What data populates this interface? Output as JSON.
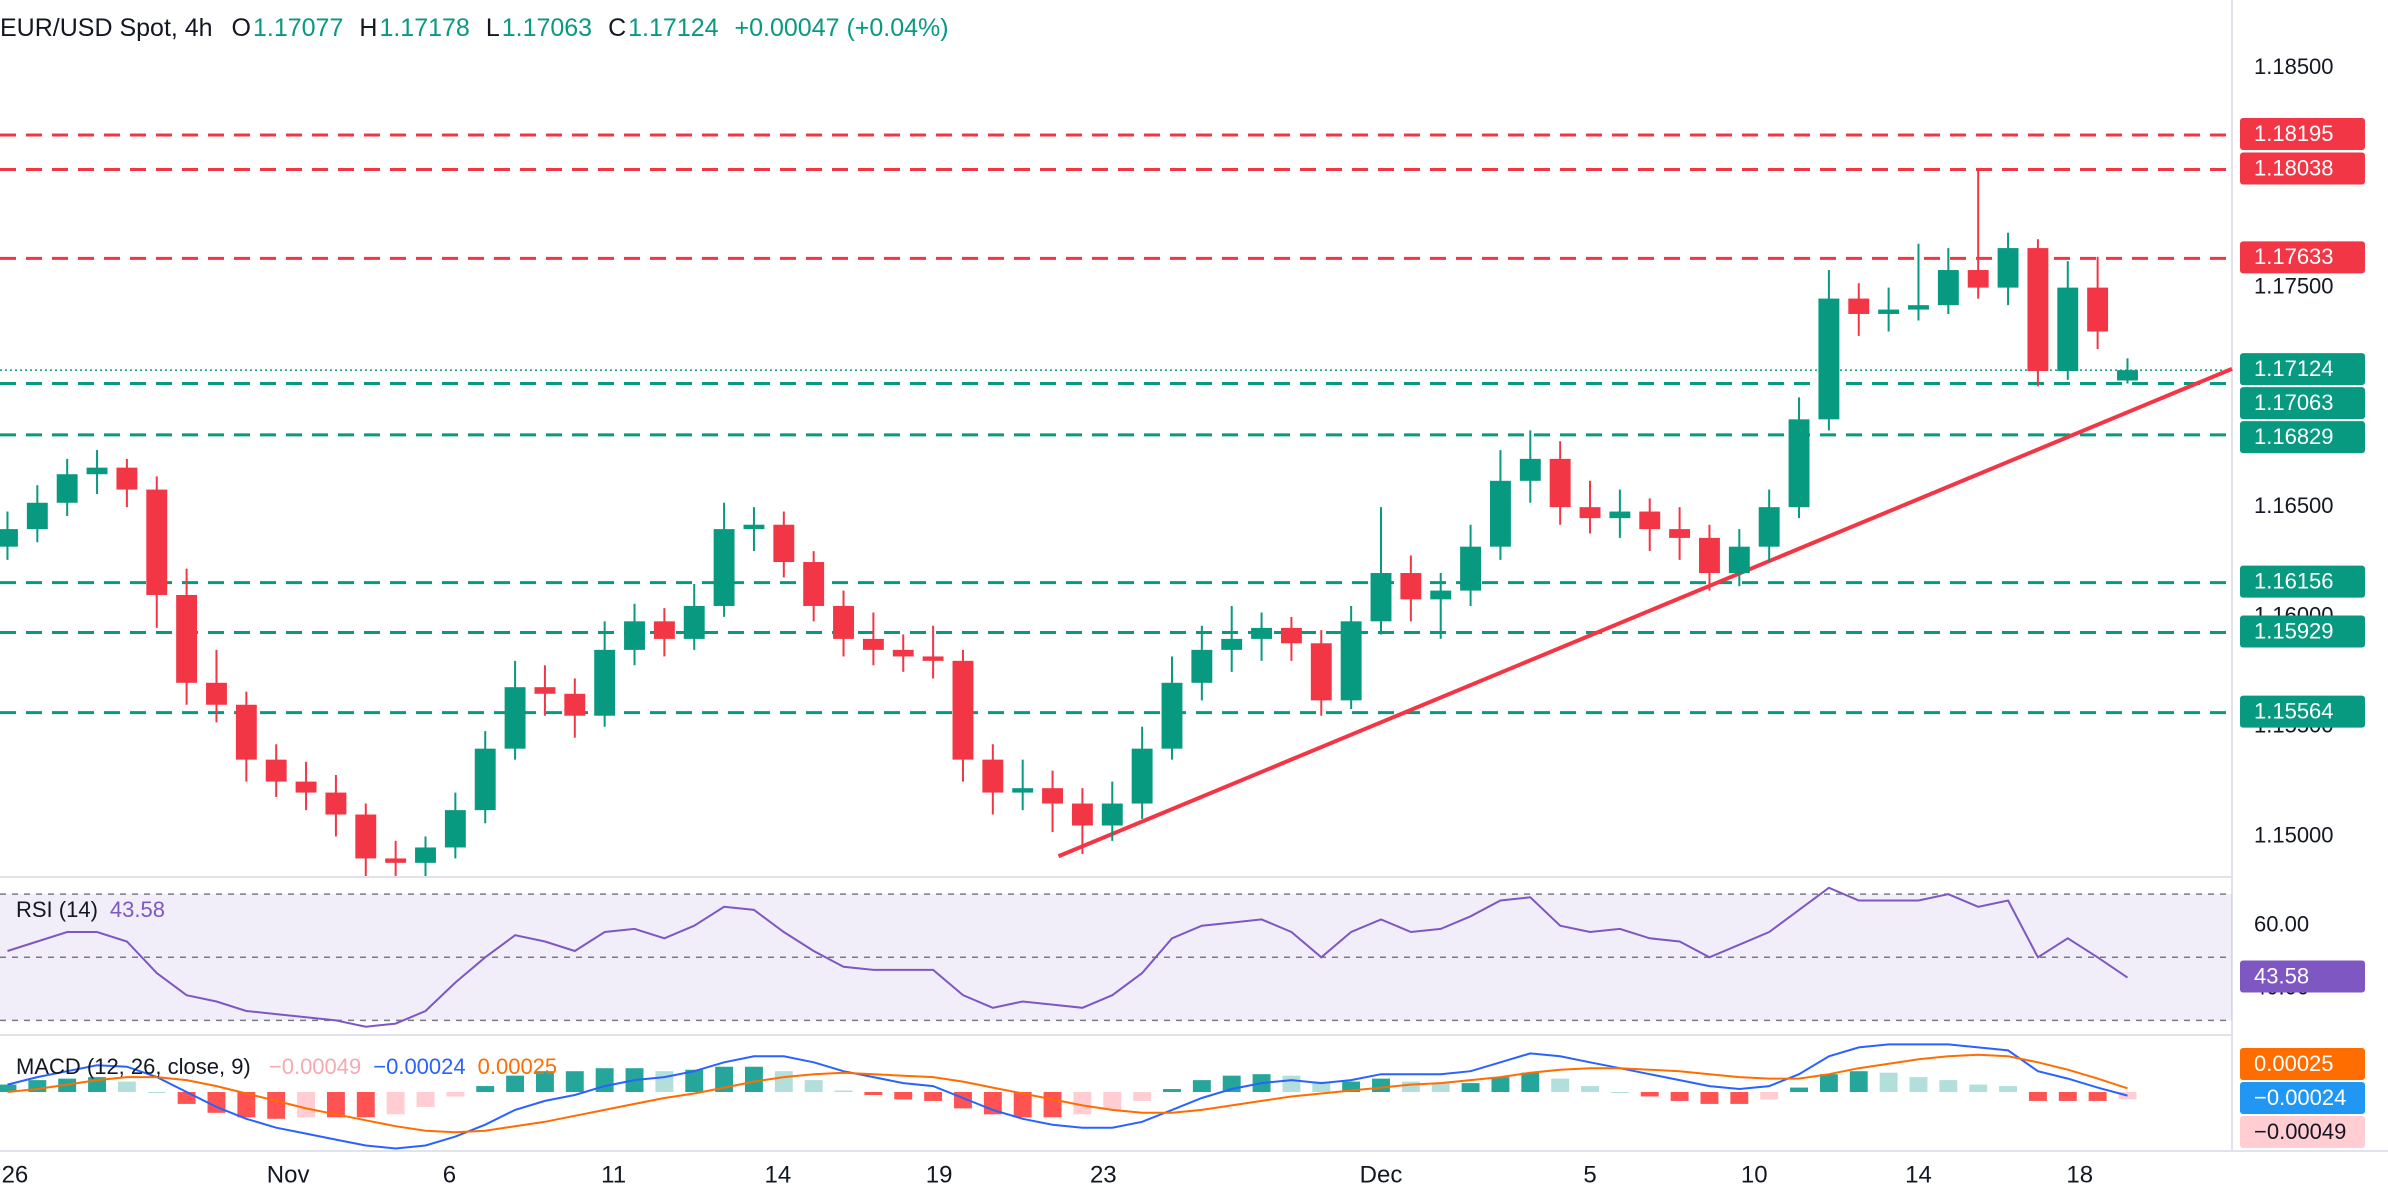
{
  "chart_data": [
    {
      "type": "candlestick",
      "title": "EUR/USD Spot, 4h",
      "ohlc_legend": [
        {
          "label": "O",
          "value": 1.17077
        },
        {
          "label": "H",
          "value": 1.17178
        },
        {
          "label": "L",
          "value": 1.17063
        },
        {
          "label": "C",
          "value": 1.17124
        }
      ],
      "change": "+0.00047 (+0.04%)",
      "up_color": "#089981",
      "down_color": "#f23645",
      "ohlc": [
        [
          1.1632,
          1.1648,
          1.1626,
          1.164
        ],
        [
          1.164,
          1.166,
          1.1634,
          1.1652
        ],
        [
          1.1652,
          1.1672,
          1.1646,
          1.1665
        ],
        [
          1.1665,
          1.1676,
          1.1656,
          1.1668
        ],
        [
          1.1668,
          1.1672,
          1.165,
          1.1658
        ],
        [
          1.1658,
          1.1664,
          1.1595,
          1.161
        ],
        [
          1.161,
          1.1622,
          1.156,
          1.157
        ],
        [
          1.157,
          1.1585,
          1.1552,
          1.156
        ],
        [
          1.156,
          1.1566,
          1.1525,
          1.1535
        ],
        [
          1.1535,
          1.1542,
          1.1518,
          1.1525
        ],
        [
          1.1525,
          1.1534,
          1.1512,
          1.152
        ],
        [
          1.152,
          1.1528,
          1.15,
          1.151
        ],
        [
          1.151,
          1.1515,
          1.1482,
          1.149
        ],
        [
          1.149,
          1.1498,
          1.1482,
          1.1488
        ],
        [
          1.1488,
          1.15,
          1.1482,
          1.1495
        ],
        [
          1.1495,
          1.152,
          1.149,
          1.1512
        ],
        [
          1.1512,
          1.1548,
          1.1506,
          1.154
        ],
        [
          1.154,
          1.158,
          1.1535,
          1.1568
        ],
        [
          1.1568,
          1.1578,
          1.1555,
          1.1565
        ],
        [
          1.1565,
          1.1572,
          1.1545,
          1.1555
        ],
        [
          1.1555,
          1.1598,
          1.155,
          1.1585
        ],
        [
          1.1585,
          1.1606,
          1.1578,
          1.1598
        ],
        [
          1.1598,
          1.1604,
          1.1582,
          1.159
        ],
        [
          1.159,
          1.1615,
          1.1585,
          1.1605
        ],
        [
          1.1605,
          1.1652,
          1.16,
          1.164
        ],
        [
          1.164,
          1.165,
          1.163,
          1.1642
        ],
        [
          1.1642,
          1.1648,
          1.1618,
          1.1625
        ],
        [
          1.1625,
          1.163,
          1.1598,
          1.1605
        ],
        [
          1.1605,
          1.1612,
          1.1582,
          1.159
        ],
        [
          1.159,
          1.1602,
          1.1578,
          1.1585
        ],
        [
          1.1585,
          1.1592,
          1.1575,
          1.1582
        ],
        [
          1.1582,
          1.1596,
          1.1572,
          1.158
        ],
        [
          1.158,
          1.1585,
          1.1525,
          1.1535
        ],
        [
          1.1535,
          1.1542,
          1.151,
          1.152
        ],
        [
          1.152,
          1.1535,
          1.1512,
          1.1522
        ],
        [
          1.1522,
          1.153,
          1.1502,
          1.1515
        ],
        [
          1.1515,
          1.1522,
          1.1492,
          1.1505
        ],
        [
          1.1505,
          1.1525,
          1.1498,
          1.1515
        ],
        [
          1.1515,
          1.155,
          1.1508,
          1.154
        ],
        [
          1.154,
          1.1582,
          1.1535,
          1.157
        ],
        [
          1.157,
          1.1596,
          1.1562,
          1.1585
        ],
        [
          1.1585,
          1.1605,
          1.1575,
          1.159
        ],
        [
          1.159,
          1.1602,
          1.158,
          1.1595
        ],
        [
          1.1595,
          1.16,
          1.158,
          1.1588
        ],
        [
          1.1588,
          1.1594,
          1.1555,
          1.1562
        ],
        [
          1.1562,
          1.1605,
          1.1558,
          1.1598
        ],
        [
          1.1598,
          1.165,
          1.1592,
          1.162
        ],
        [
          1.162,
          1.1628,
          1.1598,
          1.1608
        ],
        [
          1.1608,
          1.162,
          1.159,
          1.1612
        ],
        [
          1.1612,
          1.1642,
          1.1605,
          1.1632
        ],
        [
          1.1632,
          1.1676,
          1.1626,
          1.1662
        ],
        [
          1.1662,
          1.1685,
          1.1652,
          1.1672
        ],
        [
          1.1672,
          1.168,
          1.1642,
          1.165
        ],
        [
          1.165,
          1.1662,
          1.1638,
          1.1645
        ],
        [
          1.1645,
          1.1658,
          1.1636,
          1.1648
        ],
        [
          1.1648,
          1.1654,
          1.163,
          1.164
        ],
        [
          1.164,
          1.165,
          1.1626,
          1.1636
        ],
        [
          1.1636,
          1.1642,
          1.1612,
          1.162
        ],
        [
          1.162,
          1.164,
          1.1614,
          1.1632
        ],
        [
          1.1632,
          1.1658,
          1.1625,
          1.165
        ],
        [
          1.165,
          1.17,
          1.1645,
          1.169
        ],
        [
          1.169,
          1.1758,
          1.1685,
          1.1745
        ],
        [
          1.1745,
          1.1752,
          1.1728,
          1.1738
        ],
        [
          1.1738,
          1.175,
          1.173,
          1.174
        ],
        [
          1.174,
          1.177,
          1.1735,
          1.1742
        ],
        [
          1.1742,
          1.1768,
          1.1738,
          1.1758
        ],
        [
          1.1758,
          1.1804,
          1.1745,
          1.175
        ],
        [
          1.175,
          1.1775,
          1.1742,
          1.1768
        ],
        [
          1.1768,
          1.1772,
          1.1705,
          1.1712
        ],
        [
          1.1712,
          1.1762,
          1.1708,
          1.175
        ],
        [
          1.175,
          1.1764,
          1.1722,
          1.173
        ],
        [
          1.17077,
          1.17178,
          1.17063,
          1.17124
        ]
      ],
      "xlim": [
        -0.25,
        74.5
      ],
      "xticks": [
        {
          "value": 0.25,
          "label": "26"
        },
        {
          "value": 9.4,
          "label": "Nov"
        },
        {
          "value": 14.8,
          "label": "6"
        },
        {
          "value": 20.3,
          "label": "11"
        },
        {
          "value": 25.8,
          "label": "14"
        },
        {
          "value": 31.2,
          "label": "19"
        },
        {
          "value": 36.7,
          "label": "23"
        },
        {
          "value": 46,
          "label": "Dec"
        },
        {
          "value": 53,
          "label": "5"
        },
        {
          "value": 58.5,
          "label": "10"
        },
        {
          "value": 64,
          "label": "14"
        },
        {
          "value": 69.4,
          "label": "18"
        }
      ],
      "ylim": [
        1.1482,
        1.1881
      ],
      "yticks": [
        {
          "value": 1.185,
          "label": "1.18500"
        },
        {
          "value": 1.175,
          "label": "1.17500"
        },
        {
          "value": 1.165,
          "label": "1.16500"
        },
        {
          "value": 1.16,
          "label": "1.16000"
        },
        {
          "value": 1.155,
          "label": "1.15500"
        },
        {
          "value": 1.15,
          "label": "1.15000"
        }
      ],
      "levels": [
        {
          "value": 1.18195,
          "color": "#f23645"
        },
        {
          "value": 1.18038,
          "color": "#f23645"
        },
        {
          "value": 1.17633,
          "color": "#f23645"
        },
        {
          "value": 1.17063,
          "color": "#089981"
        },
        {
          "value": 1.16829,
          "color": "#089981"
        },
        {
          "value": 1.16156,
          "color": "#089981"
        },
        {
          "value": 1.15929,
          "color": "#089981"
        },
        {
          "value": 1.15564,
          "color": "#089981"
        }
      ],
      "last_price": {
        "value": 1.17124,
        "color": "#089981"
      },
      "trendline": {
        "x": [
          35.2,
          74.5
        ],
        "y": [
          1.1491,
          1.1713
        ],
        "color": "#f23645"
      }
    },
    {
      "type": "rsi",
      "title": "RSI (14)",
      "color": "#7e57c2",
      "values": [
        52,
        55,
        58,
        58,
        55,
        45,
        38,
        36,
        33,
        32,
        31,
        30,
        28,
        29,
        33,
        42,
        50,
        57,
        55,
        52,
        58,
        59,
        56,
        60,
        66,
        65,
        58,
        52,
        47,
        46,
        46,
        46,
        38,
        34,
        36,
        35,
        34,
        38,
        45,
        56,
        60,
        61,
        62,
        58,
        50,
        58,
        62,
        58,
        59,
        63,
        68,
        69,
        60,
        58,
        59,
        56,
        55,
        50,
        54,
        58,
        65,
        72,
        68,
        68,
        68,
        70,
        66,
        68,
        50,
        56,
        50,
        43.58
      ],
      "ylim": [
        25.7,
        74.8
      ],
      "yticks": [
        {
          "value": 60,
          "label": "60.00"
        },
        {
          "value": 40,
          "label": "40.00"
        }
      ],
      "bands": [
        70,
        50,
        30
      ]
    },
    {
      "type": "macd",
      "title": "MACD (12, 26, close, 9)",
      "macd": {
        "color": "#2962ff",
        "values": [
          0.0005,
          0.001,
          0.0014,
          0.0018,
          0.0017,
          0.001,
          0,
          -0.001,
          -0.0018,
          -0.0024,
          -0.0028,
          -0.0032,
          -0.0036,
          -0.0038,
          -0.0036,
          -0.003,
          -0.0022,
          -0.0012,
          -0.0006,
          -0.0002,
          0.0004,
          0.0008,
          0.001,
          0.0014,
          0.002,
          0.0024,
          0.0024,
          0.002,
          0.0014,
          0.001,
          0.0006,
          0.0004,
          -0.0004,
          -0.0012,
          -0.0018,
          -0.0022,
          -0.0024,
          -0.0024,
          -0.002,
          -0.0012,
          -0.0004,
          0.0002,
          0.0006,
          0.0008,
          0.0006,
          0.0008,
          0.0012,
          0.0012,
          0.0012,
          0.0014,
          0.002,
          0.0026,
          0.0024,
          0.002,
          0.0016,
          0.0012,
          0.0008,
          0.0004,
          0.0002,
          0.0004,
          0.0012,
          0.0024,
          0.003,
          0.0032,
          0.0032,
          0.0032,
          0.003,
          0.0028,
          0.0014,
          0.0009,
          0.0003,
          -0.00024
        ]
      },
      "signal": {
        "color": "#ff6d00",
        "values": [
          0,
          0.0002,
          0.0005,
          0.0008,
          0.001,
          0.001,
          0.0008,
          0.0004,
          -0.0001,
          -0.0006,
          -0.0011,
          -0.0015,
          -0.0019,
          -0.0023,
          -0.0026,
          -0.0027,
          -0.0026,
          -0.0023,
          -0.002,
          -0.0016,
          -0.0012,
          -0.0008,
          -0.0004,
          -0.0001,
          0.0003,
          0.0007,
          0.001,
          0.0012,
          0.0013,
          0.0012,
          0.0011,
          0.001,
          0.0007,
          0.0003,
          -0.0001,
          -0.0005,
          -0.0009,
          -0.0012,
          -0.0014,
          -0.0014,
          -0.0012,
          -0.0009,
          -0.0006,
          -0.0003,
          -0.0001,
          0.0001,
          0.0003,
          0.0005,
          0.0006,
          0.0008,
          0.001,
          0.0013,
          0.0015,
          0.0016,
          0.0016,
          0.0015,
          0.0014,
          0.0012,
          0.001,
          0.0009,
          0.0009,
          0.0012,
          0.0016,
          0.0019,
          0.0022,
          0.0024,
          0.0025,
          0.0024,
          0.002,
          0.0015,
          0.0009,
          0.00025
        ]
      },
      "histogram": {
        "colors": [
          "#26a69a",
          "#b2dfdb",
          "#ff5252",
          "#ffcdd2"
        ],
        "values": [
          0.0005,
          0.0008,
          0.0009,
          0.001,
          0.0007,
          0,
          -0.0008,
          -0.0014,
          -0.0017,
          -0.0018,
          -0.0017,
          -0.0017,
          -0.0017,
          -0.0015,
          -0.001,
          -0.0003,
          0.0004,
          0.0011,
          0.0014,
          0.0014,
          0.0016,
          0.0016,
          0.0014,
          0.0015,
          0.0017,
          0.0017,
          0.0014,
          0.0008,
          0.0001,
          -0.0002,
          -0.0005,
          -0.0006,
          -0.0011,
          -0.0015,
          -0.0017,
          -0.0017,
          -0.0015,
          -0.0012,
          -0.0006,
          0.0002,
          0.0008,
          0.0011,
          0.0012,
          0.0011,
          0.0007,
          0.0007,
          0.0009,
          0.0007,
          0.0006,
          0.0006,
          0.001,
          0.0013,
          0.0009,
          0.0004,
          0,
          -0.0003,
          -0.0006,
          -0.0008,
          -0.0008,
          -0.0005,
          0.0003,
          0.0012,
          0.0014,
          0.0013,
          0.001,
          0.0008,
          0.0005,
          0.0004,
          -0.0006,
          -0.0006,
          -0.0006,
          -0.00049
        ]
      },
      "legend": [
        {
          "value": -0.00049,
          "label": "−0.00049",
          "color": "#f7a9b2",
          "box": "#ffcdd2"
        },
        {
          "value": -0.00024,
          "label": "−0.00024",
          "color": "#2962ff",
          "box": "#2196f3"
        },
        {
          "value": 0.00025,
          "label": "0.00025",
          "color": "#ff6d00",
          "box": "#ff6d00"
        }
      ],
      "ylim": [
        -0.0039,
        0.0037
      ]
    }
  ]
}
